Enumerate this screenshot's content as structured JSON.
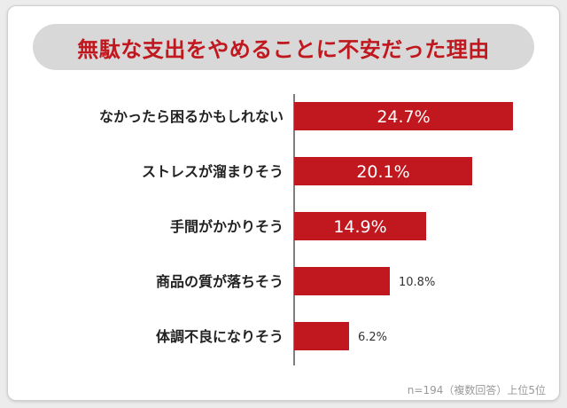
{
  "chart_data": {
    "type": "bar",
    "orientation": "horizontal",
    "title": "無駄な支出をやめることに不安だった理由",
    "categories": [
      "なかったら困るかもしれない",
      "ストレスが溜まりそう",
      "手間がかかりそう",
      "商品の質が落ちそう",
      "体調不良になりそう"
    ],
    "values": [
      24.7,
      20.1,
      14.9,
      10.8,
      6.2
    ],
    "value_labels": [
      "24.7%",
      "20.1%",
      "14.9%",
      "10.8%",
      "6.2%"
    ],
    "bar_color": "#c0181e",
    "xlim": [
      0,
      30
    ],
    "grid": false,
    "note": "n=194（複数回答）上位5位"
  }
}
